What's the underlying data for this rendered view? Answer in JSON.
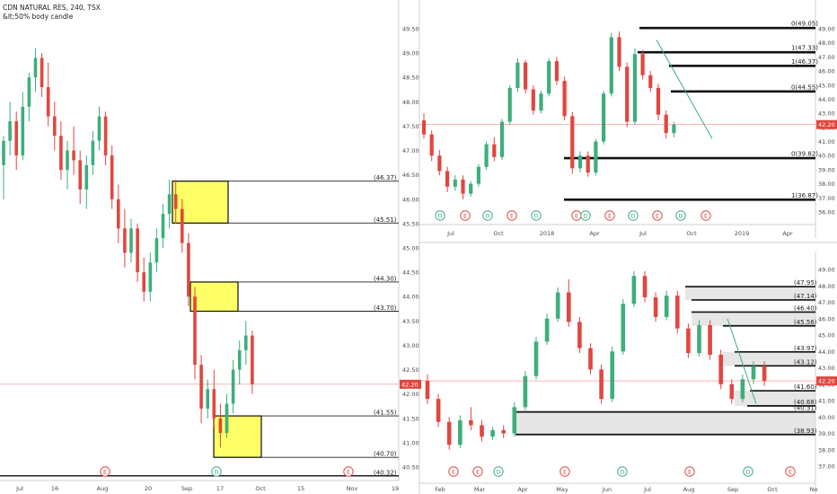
{
  "header": {
    "symbol_line": "CDN NATURAL RES, 240, TSX",
    "style_line": "&lt;50% body candle"
  },
  "colors": {
    "up": "#3dae7c",
    "down": "#e2463f",
    "zone": "#ffff66",
    "last_price": "#e2463f",
    "grey_zone": "#dcdcdc"
  },
  "chart_data": [
    {
      "type": "candlestick",
      "name": "left",
      "price_axis_ticks": [
        "49.50",
        "49.00",
        "48.50",
        "48.00",
        "47.50",
        "47.00",
        "46.50",
        "46.00",
        "45.50",
        "45.00",
        "44.50",
        "44.00",
        "43.50",
        "43.00",
        "42.50",
        "42.00",
        "41.50",
        "41.00",
        "40.50"
      ],
      "time_axis_ticks": [
        "Jul",
        "16",
        "Aug",
        "20",
        "Sep",
        "17",
        "Oct",
        "15",
        "Nov",
        "19"
      ],
      "last_price": "42.20",
      "last_price_value": 42.2,
      "zones": [
        {
          "top": 46.37,
          "bottom": 45.51
        },
        {
          "top": 44.3,
          "bottom": 43.7
        },
        {
          "top": 41.55,
          "bottom": 40.7
        }
      ],
      "levels": [
        {
          "value": 46.37,
          "label": "(46.37)"
        },
        {
          "value": 45.51,
          "label": "(45.51)"
        },
        {
          "value": 44.3,
          "label": "(44.30)"
        },
        {
          "value": 43.7,
          "label": "(43.70)"
        },
        {
          "value": 41.55,
          "label": "(41.55)"
        },
        {
          "value": 40.7,
          "label": "(40.70)"
        },
        {
          "value": 40.32,
          "label": "(40.32)"
        }
      ],
      "events": [
        "E",
        "D",
        "E"
      ],
      "candles": [
        [
          46.7,
          47.3,
          46.0,
          47.2
        ],
        [
          47.2,
          48.0,
          46.9,
          47.6
        ],
        [
          47.6,
          47.8,
          46.6,
          46.9
        ],
        [
          46.9,
          48.2,
          46.8,
          47.9
        ],
        [
          47.9,
          48.6,
          47.6,
          48.5
        ],
        [
          48.5,
          49.1,
          48.2,
          48.9
        ],
        [
          48.9,
          49.0,
          48.1,
          48.3
        ],
        [
          48.3,
          48.8,
          47.5,
          47.7
        ],
        [
          47.7,
          48.0,
          47.0,
          47.3
        ],
        [
          47.3,
          47.6,
          46.4,
          46.6
        ],
        [
          46.6,
          47.2,
          46.2,
          47.0
        ],
        [
          47.0,
          47.5,
          46.5,
          46.8
        ],
        [
          46.8,
          47.0,
          45.9,
          46.2
        ],
        [
          46.2,
          46.9,
          45.8,
          46.7
        ],
        [
          46.7,
          47.4,
          46.5,
          47.2
        ],
        [
          47.2,
          47.9,
          47.0,
          47.7
        ],
        [
          47.7,
          47.8,
          46.7,
          46.9
        ],
        [
          46.9,
          47.1,
          45.8,
          46.0
        ],
        [
          46.0,
          46.3,
          45.1,
          45.4
        ],
        [
          45.4,
          45.8,
          44.6,
          44.9
        ],
        [
          44.9,
          45.6,
          44.7,
          45.4
        ],
        [
          45.4,
          45.5,
          44.3,
          44.5
        ],
        [
          44.5,
          44.8,
          43.9,
          44.1
        ],
        [
          44.1,
          44.9,
          43.9,
          44.7
        ],
        [
          44.7,
          45.4,
          44.5,
          45.2
        ],
        [
          45.2,
          45.9,
          45.0,
          45.7
        ],
        [
          45.7,
          46.4,
          45.4,
          46.1
        ],
        [
          46.1,
          46.4,
          45.5,
          45.8
        ],
        [
          45.8,
          46.0,
          44.9,
          45.1
        ],
        [
          45.1,
          45.3,
          43.8,
          44.0
        ],
        [
          44.0,
          44.2,
          42.3,
          42.6
        ],
        [
          42.6,
          42.8,
          41.4,
          41.7
        ],
        [
          41.7,
          42.3,
          41.5,
          42.1
        ],
        [
          42.1,
          42.5,
          41.3,
          41.5
        ],
        [
          41.5,
          41.8,
          40.9,
          41.2
        ],
        [
          41.2,
          42.0,
          41.1,
          41.8
        ],
        [
          41.8,
          42.7,
          41.6,
          42.5
        ],
        [
          42.5,
          43.1,
          42.2,
          42.9
        ],
        [
          42.9,
          43.5,
          42.6,
          43.2
        ],
        [
          43.2,
          43.3,
          42.0,
          42.2
        ]
      ]
    },
    {
      "type": "candlestick",
      "name": "top-right",
      "price_axis_ticks": [
        "49.00",
        "48.00",
        "47.00",
        "46.00",
        "45.00",
        "44.00",
        "43.00",
        "42.00",
        "41.00",
        "40.00",
        "39.00",
        "38.00",
        "37.00",
        "36.00"
      ],
      "time_axis_ticks": [
        "Jul",
        "Oct",
        "2018",
        "Apr",
        "Jul",
        "Oct",
        "2019",
        "Apr"
      ],
      "last_price": "42.20",
      "last_price_value": 42.2,
      "levels": [
        {
          "value": 49.05,
          "label": "0(49.05)"
        },
        {
          "value": 47.33,
          "label": "1(47.33)"
        },
        {
          "value": 46.37,
          "label": "1(46.37)"
        },
        {
          "value": 44.55,
          "label": "0(44.55)"
        },
        {
          "value": 39.82,
          "label": "0(39.82)"
        },
        {
          "value": 36.87,
          "label": "1(36.87)"
        }
      ],
      "events": [
        "D",
        "E",
        "D",
        "E",
        "D",
        "E",
        "D",
        "E",
        "D",
        "E",
        "D",
        "E"
      ],
      "candles": [
        [
          42.5,
          43.0,
          41.2,
          41.5
        ],
        [
          41.5,
          41.8,
          39.6,
          40.0
        ],
        [
          40.0,
          40.4,
          38.6,
          38.9
        ],
        [
          38.9,
          39.2,
          37.4,
          37.8
        ],
        [
          37.8,
          38.6,
          37.5,
          38.3
        ],
        [
          38.3,
          38.6,
          36.9,
          37.3
        ],
        [
          37.3,
          38.2,
          37.1,
          38.0
        ],
        [
          38.0,
          39.4,
          37.8,
          39.2
        ],
        [
          39.2,
          41.0,
          39.0,
          40.8
        ],
        [
          40.8,
          41.3,
          39.6,
          39.9
        ],
        [
          39.9,
          42.6,
          39.7,
          42.4
        ],
        [
          42.4,
          45.0,
          42.2,
          44.8
        ],
        [
          44.8,
          46.9,
          44.5,
          46.6
        ],
        [
          46.6,
          46.8,
          44.4,
          44.7
        ],
        [
          44.7,
          45.0,
          42.9,
          43.2
        ],
        [
          43.2,
          44.6,
          43.0,
          44.4
        ],
        [
          44.4,
          46.9,
          44.2,
          46.7
        ],
        [
          46.7,
          47.0,
          45.0,
          45.3
        ],
        [
          45.3,
          45.6,
          42.5,
          42.8
        ],
        [
          42.8,
          43.1,
          38.7,
          39.1
        ],
        [
          39.1,
          40.3,
          38.8,
          40.0
        ],
        [
          40.0,
          40.3,
          38.5,
          38.8
        ],
        [
          38.8,
          41.2,
          38.6,
          41.0
        ],
        [
          41.0,
          44.6,
          40.8,
          44.4
        ],
        [
          44.4,
          48.7,
          44.2,
          48.4
        ],
        [
          48.4,
          48.8,
          46.0,
          46.3
        ],
        [
          46.3,
          46.6,
          42.0,
          42.4
        ],
        [
          42.4,
          47.6,
          42.2,
          47.2
        ],
        [
          47.2,
          47.5,
          45.4,
          45.7
        ],
        [
          45.7,
          46.0,
          44.5,
          44.8
        ],
        [
          44.8,
          45.1,
          42.5,
          42.9
        ],
        [
          42.9,
          43.2,
          41.2,
          41.6
        ],
        [
          41.6,
          42.4,
          41.3,
          42.2
        ]
      ]
    },
    {
      "type": "candlestick",
      "name": "bottom-right",
      "price_axis_ticks": [
        "49.00",
        "48.00",
        "47.00",
        "46.00",
        "45.00",
        "44.00",
        "43.00",
        "42.00",
        "41.00",
        "40.00",
        "39.00",
        "38.00",
        "37.00"
      ],
      "time_axis_ticks": [
        "Feb",
        "Mar",
        "Apr",
        "May",
        "Jun",
        "Jul",
        "Aug",
        "Sep",
        "Oct",
        "No"
      ],
      "last_price": "42.20",
      "last_price_value": 42.2,
      "grey_zones": [
        {
          "top": 47.95,
          "bottom": 47.14
        },
        {
          "top": 46.4,
          "bottom": 45.56
        },
        {
          "top": 43.97,
          "bottom": 43.12
        },
        {
          "top": 41.6,
          "bottom": 40.68
        },
        {
          "top": 40.31,
          "bottom": 38.93
        }
      ],
      "levels": [
        {
          "value": 47.95,
          "label": "(47.95)"
        },
        {
          "value": 47.14,
          "label": "(47.14)"
        },
        {
          "value": 46.4,
          "label": "(46.40)"
        },
        {
          "value": 45.56,
          "label": "(45.56)"
        },
        {
          "value": 43.97,
          "label": "(43.97)"
        },
        {
          "value": 43.12,
          "label": "(43.12)"
        },
        {
          "value": 41.6,
          "label": "(41.60)"
        },
        {
          "value": 40.68,
          "label": "(40.68)"
        },
        {
          "value": 40.31,
          "label": "(40.31)"
        },
        {
          "value": 38.93,
          "label": "(38.93)"
        }
      ],
      "events": [
        "E",
        "E",
        "D",
        "E",
        "D",
        "E",
        "D",
        "E"
      ],
      "candles": [
        [
          42.2,
          42.6,
          40.8,
          41.1
        ],
        [
          41.1,
          41.4,
          39.4,
          39.7
        ],
        [
          39.7,
          40.0,
          38.0,
          38.3
        ],
        [
          38.3,
          40.1,
          38.1,
          39.8
        ],
        [
          39.8,
          40.6,
          39.2,
          39.5
        ],
        [
          39.5,
          39.8,
          38.5,
          38.8
        ],
        [
          38.8,
          39.4,
          38.6,
          39.2
        ],
        [
          39.2,
          39.5,
          38.7,
          39.0
        ],
        [
          39.0,
          40.9,
          38.8,
          40.6
        ],
        [
          40.6,
          42.8,
          40.4,
          42.5
        ],
        [
          42.5,
          44.9,
          42.3,
          44.6
        ],
        [
          44.6,
          46.3,
          44.4,
          46.0
        ],
        [
          46.0,
          47.9,
          45.8,
          47.6
        ],
        [
          47.6,
          48.4,
          45.5,
          45.8
        ],
        [
          45.8,
          46.1,
          43.9,
          44.2
        ],
        [
          44.2,
          44.5,
          42.6,
          42.9
        ],
        [
          42.9,
          43.2,
          40.8,
          41.1
        ],
        [
          41.1,
          44.3,
          40.9,
          44.0
        ],
        [
          44.0,
          47.2,
          43.8,
          46.9
        ],
        [
          46.9,
          48.9,
          46.7,
          48.6
        ],
        [
          48.6,
          48.9,
          47.0,
          47.3
        ],
        [
          47.3,
          47.6,
          45.8,
          46.1
        ],
        [
          46.1,
          47.7,
          45.9,
          47.4
        ],
        [
          47.4,
          47.7,
          45.1,
          45.4
        ],
        [
          45.4,
          45.7,
          43.6,
          43.9
        ],
        [
          43.9,
          45.9,
          43.7,
          45.6
        ],
        [
          45.6,
          45.9,
          43.5,
          43.8
        ],
        [
          43.8,
          44.1,
          41.7,
          42.0
        ],
        [
          42.0,
          42.3,
          40.8,
          41.1
        ],
        [
          41.1,
          42.6,
          40.9,
          42.3
        ],
        [
          42.3,
          43.4,
          42.0,
          43.1
        ],
        [
          43.1,
          43.4,
          41.9,
          42.2
        ]
      ]
    }
  ]
}
